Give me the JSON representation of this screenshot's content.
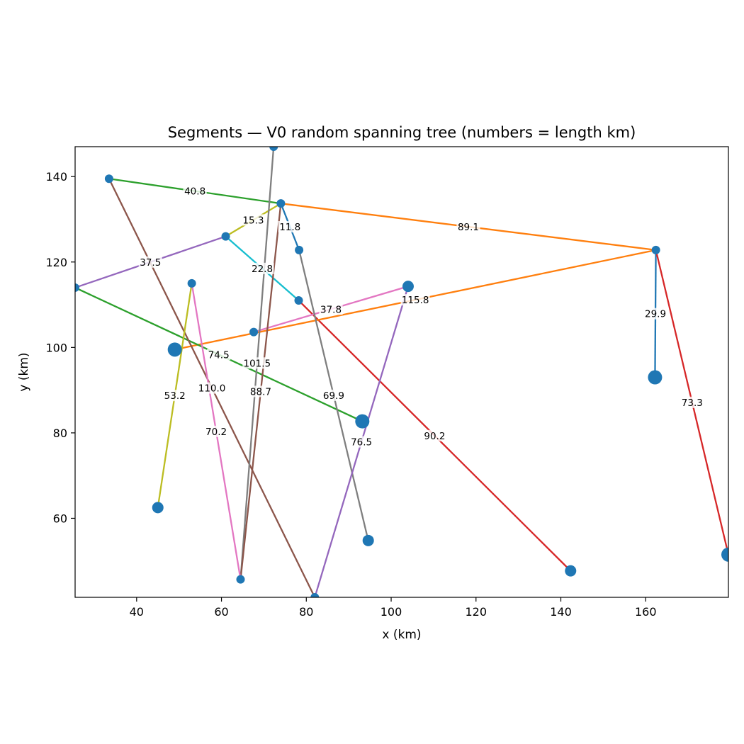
{
  "chart_data": {
    "type": "scatter",
    "title": "Segments — V0 random spanning tree (numbers = length km)",
    "xlabel": "x (km)",
    "ylabel": "y (km)",
    "xlim": [
      25.5,
      179.5
    ],
    "ylim": [
      41.5,
      147
    ],
    "xticks": [
      40,
      60,
      80,
      100,
      120,
      140,
      160
    ],
    "yticks": [
      60,
      80,
      100,
      120,
      140
    ],
    "grid": false,
    "marker_color": "#1f77b4",
    "nodes": [
      {
        "x": 33.5,
        "y": 139.5,
        "size": 1
      },
      {
        "x": 74.0,
        "y": 133.7,
        "size": 1
      },
      {
        "x": 72.3,
        "y": 147.0,
        "size": 1
      },
      {
        "x": 61.0,
        "y": 126.0,
        "size": 1
      },
      {
        "x": 78.3,
        "y": 122.8,
        "size": 1
      },
      {
        "x": 162.4,
        "y": 122.8,
        "size": 1
      },
      {
        "x": 25.5,
        "y": 114.0,
        "size": 1
      },
      {
        "x": 53.0,
        "y": 115.0,
        "size": 1
      },
      {
        "x": 78.2,
        "y": 111.0,
        "size": 1
      },
      {
        "x": 104.0,
        "y": 114.3,
        "size": 2
      },
      {
        "x": 67.6,
        "y": 103.6,
        "size": 1
      },
      {
        "x": 49.0,
        "y": 99.5,
        "size": 3
      },
      {
        "x": 162.2,
        "y": 93.0,
        "size": 3
      },
      {
        "x": 93.2,
        "y": 82.7,
        "size": 3
      },
      {
        "x": 45.0,
        "y": 62.5,
        "size": 2
      },
      {
        "x": 94.6,
        "y": 54.8,
        "size": 2
      },
      {
        "x": 179.5,
        "y": 51.5,
        "size": 3
      },
      {
        "x": 142.3,
        "y": 47.7,
        "size": 2
      },
      {
        "x": 64.5,
        "y": 45.7,
        "size": 1
      },
      {
        "x": 82.0,
        "y": 41.5,
        "size": 1
      }
    ],
    "segments": [
      {
        "from": [
          33.5,
          139.5
        ],
        "to": [
          74.0,
          133.7
        ],
        "length": "40.8",
        "color": "#2ca02c"
      },
      {
        "from": [
          74.0,
          133.7
        ],
        "to": [
          162.4,
          122.8
        ],
        "length": "89.1",
        "color": "#ff7f0e"
      },
      {
        "from": [
          61.0,
          126.0
        ],
        "to": [
          74.0,
          133.7
        ],
        "length": "15.3",
        "color": "#bcbd22"
      },
      {
        "from": [
          74.0,
          133.7
        ],
        "to": [
          78.3,
          122.8
        ],
        "length": "11.8",
        "color": "#1f77b4"
      },
      {
        "from": [
          25.5,
          114.0
        ],
        "to": [
          61.0,
          126.0
        ],
        "length": "37.5",
        "color": "#9467bd"
      },
      {
        "from": [
          61.0,
          126.0
        ],
        "to": [
          78.2,
          111.0
        ],
        "length": "22.8",
        "color": "#17becf"
      },
      {
        "from": [
          78.2,
          111.0
        ],
        "to": [
          142.3,
          47.7
        ],
        "length": "90.2",
        "color": "#d62728"
      },
      {
        "from": [
          67.6,
          103.6
        ],
        "to": [
          104.0,
          114.3
        ],
        "length": "37.8",
        "color": "#e377c2"
      },
      {
        "from": [
          49.0,
          99.5
        ],
        "to": [
          162.4,
          122.8
        ],
        "length": "115.8",
        "color": "#ff7f0e"
      },
      {
        "from": [
          162.4,
          122.8
        ],
        "to": [
          162.2,
          93.0
        ],
        "length": "29.9",
        "color": "#1f77b4"
      },
      {
        "from": [
          162.4,
          122.8
        ],
        "to": [
          179.5,
          51.5
        ],
        "length": "73.3",
        "color": "#d62728"
      },
      {
        "from": [
          25.5,
          114.0
        ],
        "to": [
          93.2,
          82.7
        ],
        "length": "74.5",
        "color": "#2ca02c"
      },
      {
        "from": [
          33.5,
          139.5
        ],
        "to": [
          82.0,
          41.5
        ],
        "length": "110.0",
        "color": "#8c564b"
      },
      {
        "from": [
          72.3,
          147.0
        ],
        "to": [
          64.5,
          45.7
        ],
        "length": "101.5",
        "color": "#7f7f7f"
      },
      {
        "from": [
          74.0,
          133.7
        ],
        "to": [
          64.5,
          45.7
        ],
        "length": "88.7",
        "color": "#8c564b"
      },
      {
        "from": [
          78.3,
          122.8
        ],
        "to": [
          94.6,
          54.8
        ],
        "length": "69.9",
        "color": "#7f7f7f"
      },
      {
        "from": [
          104.0,
          114.3
        ],
        "to": [
          82.0,
          41.5
        ],
        "length": "76.5",
        "color": "#9467bd"
      },
      {
        "from": [
          53.0,
          115.0
        ],
        "to": [
          45.0,
          62.5
        ],
        "length": "53.2",
        "color": "#bcbd22"
      },
      {
        "from": [
          53.0,
          115.0
        ],
        "to": [
          64.5,
          45.7
        ],
        "length": "70.2",
        "color": "#e377c2"
      }
    ]
  }
}
